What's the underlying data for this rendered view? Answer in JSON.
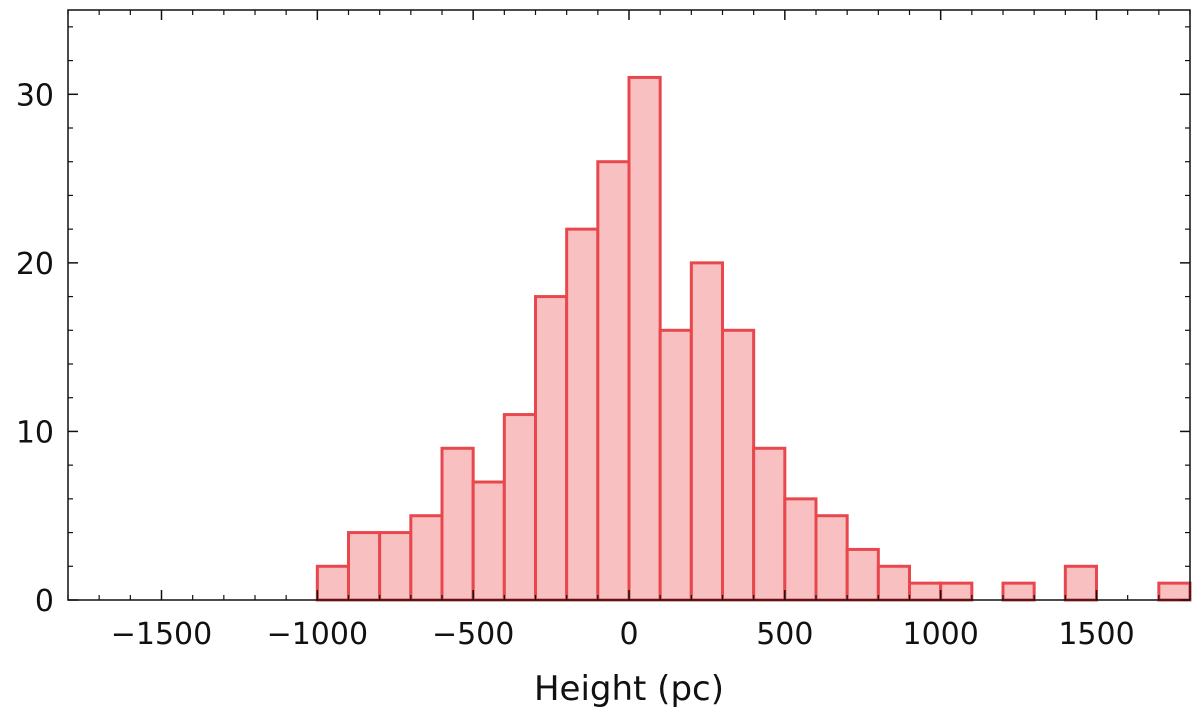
{
  "chart_data": {
    "type": "bar",
    "title": "",
    "xlabel": "Height (pc)",
    "ylabel": "",
    "xlim": [
      -1800,
      1800
    ],
    "ylim": [
      0,
      35
    ],
    "grid": false,
    "bin_width": 100,
    "x_ticks": [
      {
        "value": -1500,
        "label": "−1500"
      },
      {
        "value": -1000,
        "label": "−1000"
      },
      {
        "value": -500,
        "label": "−500"
      },
      {
        "value": 0,
        "label": "0"
      },
      {
        "value": 500,
        "label": "500"
      },
      {
        "value": 1000,
        "label": "1000"
      },
      {
        "value": 1500,
        "label": "1500"
      }
    ],
    "y_ticks": [
      {
        "value": 0,
        "label": "0"
      },
      {
        "value": 10,
        "label": "10"
      },
      {
        "value": 20,
        "label": "20"
      },
      {
        "value": 30,
        "label": "30"
      }
    ],
    "bins": [
      {
        "x0": -1000,
        "x1": -900,
        "count": 2
      },
      {
        "x0": -900,
        "x1": -800,
        "count": 4
      },
      {
        "x0": -800,
        "x1": -700,
        "count": 4
      },
      {
        "x0": -700,
        "x1": -600,
        "count": 5
      },
      {
        "x0": -600,
        "x1": -500,
        "count": 9
      },
      {
        "x0": -500,
        "x1": -400,
        "count": 7
      },
      {
        "x0": -400,
        "x1": -300,
        "count": 11
      },
      {
        "x0": -300,
        "x1": -200,
        "count": 18
      },
      {
        "x0": -200,
        "x1": -100,
        "count": 22
      },
      {
        "x0": -100,
        "x1": 0,
        "count": 26
      },
      {
        "x0": 0,
        "x1": 100,
        "count": 31
      },
      {
        "x0": 100,
        "x1": 200,
        "count": 16
      },
      {
        "x0": 200,
        "x1": 300,
        "count": 20
      },
      {
        "x0": 300,
        "x1": 400,
        "count": 16
      },
      {
        "x0": 400,
        "x1": 500,
        "count": 9
      },
      {
        "x0": 500,
        "x1": 600,
        "count": 6
      },
      {
        "x0": 600,
        "x1": 700,
        "count": 5
      },
      {
        "x0": 700,
        "x1": 800,
        "count": 3
      },
      {
        "x0": 800,
        "x1": 900,
        "count": 2
      },
      {
        "x0": 900,
        "x1": 1000,
        "count": 1
      },
      {
        "x0": 1000,
        "x1": 1100,
        "count": 1
      },
      {
        "x0": 1200,
        "x1": 1300,
        "count": 1
      },
      {
        "x0": 1400,
        "x1": 1500,
        "count": 2
      },
      {
        "x0": 1700,
        "x1": 1800,
        "count": 1
      }
    ],
    "colors": {
      "bar_fill": "#f9c0c1",
      "bar_edge": "#e8474d",
      "axis": "#111111"
    }
  }
}
